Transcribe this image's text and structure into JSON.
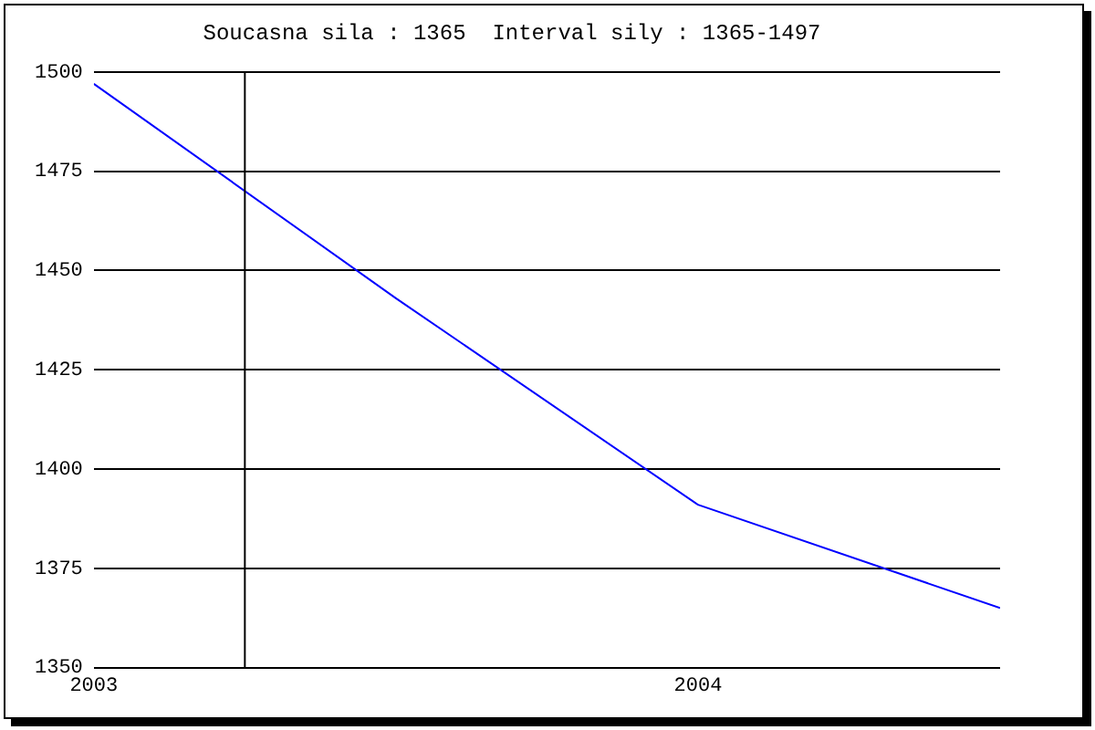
{
  "chart_data": {
    "type": "line",
    "title": "Soucasna sila : 1365  Interval sily : 1365-1497",
    "x": [
      2003,
      2003.5,
      2004,
      2004.5
    ],
    "series": [
      {
        "color": "#0000ff",
        "values": [
          1497,
          1443,
          1391,
          1365
        ]
      }
    ],
    "xlim": [
      2003,
      2004.5
    ],
    "xticks": [
      2003,
      2004
    ],
    "ylim": [
      1350,
      1500
    ],
    "yticks": [
      1350,
      1375,
      1400,
      1425,
      1450,
      1475,
      1500
    ],
    "grid": "y",
    "legend": false,
    "marker": "none",
    "line_style": "solid",
    "ref_lines": [
      {
        "axis": "x",
        "value": 2003.25,
        "color": "#000000"
      }
    ]
  }
}
